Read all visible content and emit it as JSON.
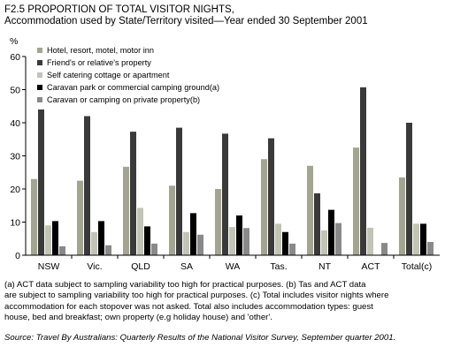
{
  "chart_data": {
    "type": "bar",
    "title": "F2.5 PROPORTION OF TOTAL VISITOR NIGHTS,",
    "subtitle": "Accommodation used by State/Territory visited—Year ended 30 September 2001",
    "ylabel": "%",
    "xlabel": "",
    "ylim": [
      0,
      60
    ],
    "yticks": [
      "0",
      "10",
      "20",
      "30",
      "40",
      "50",
      "60"
    ],
    "grid": false,
    "legend_position": "top-left",
    "categories": [
      "NSW",
      "Vic.",
      "QLD",
      "SA",
      "WA",
      "Tas.",
      "NT",
      "ACT",
      "Total(c)"
    ],
    "series": [
      {
        "name": "Hotel, resort, motel, motor inn",
        "color": "#a3a590",
        "values": [
          23,
          22.5,
          26.7,
          21,
          20,
          29,
          27,
          32.5,
          23.5
        ]
      },
      {
        "name": "Friend's or relative's property",
        "color": "#3a3a3a",
        "values": [
          44,
          42,
          37.3,
          38.5,
          36.7,
          35.3,
          18.7,
          50.7,
          40
        ]
      },
      {
        "name": "Self catering cottage or apartment",
        "color": "#c2c4b4",
        "values": [
          9,
          7,
          14.3,
          7,
          8.5,
          9.5,
          7.5,
          8.3,
          9.5
        ]
      },
      {
        "name": "Caravan park or commercial camping ground(a)",
        "color": "#000000",
        "values": [
          10.3,
          10.3,
          8.7,
          12.7,
          12,
          7,
          13.7,
          null,
          9.5
        ]
      },
      {
        "name": "Caravan or camping on private property(b)",
        "color": "#898989",
        "values": [
          2.7,
          3,
          3.5,
          6.2,
          8.2,
          3.5,
          9.7,
          3.7,
          4
        ]
      }
    ]
  },
  "notes": {
    "line1": "(a) ACT data subject to sampling variability too high for practical purposes. (b) Tas and ACT data",
    "line2": "are subject to sampling variability too high for practical purposes. (c) Total includes visitor nights where",
    "line3": "accommodation for each stopover was not asked. Total also includes accommodation types: guest",
    "line4": "house, bed and breakfast; own property (e.g holiday house) and 'other'."
  },
  "source": "Source: Travel By Australians: Quarterly Results of the National Visitor Survey, September quarter 2001."
}
